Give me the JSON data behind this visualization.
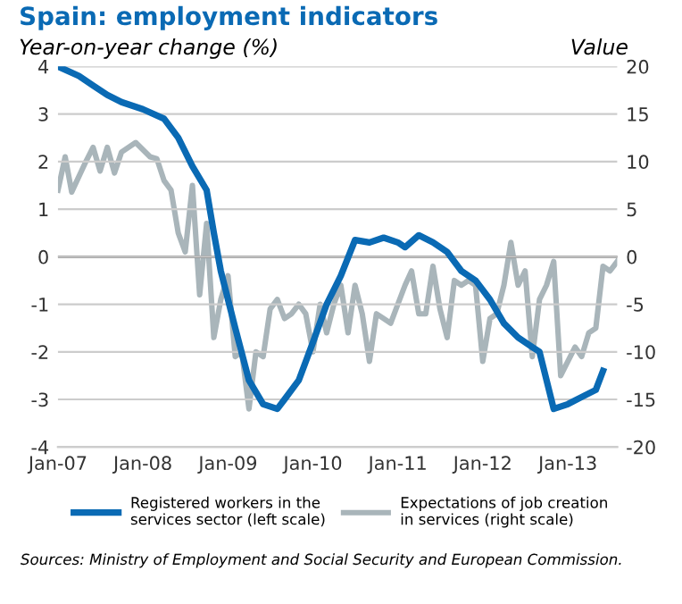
{
  "chart_data": {
    "type": "line",
    "title": "Spain: employment indicators",
    "ylabel": "Year-on-year change (%)",
    "y2label": "Value",
    "annotations": [
      "Sources: Ministry of Employment and Social Security and European Commission."
    ],
    "xlim": [
      "2007-01",
      "2013-08"
    ],
    "xticks": [
      {
        "value": "2007-01",
        "label": "Jan-07"
      },
      {
        "value": "2008-01",
        "label": "Jan-08"
      },
      {
        "value": "2009-01",
        "label": "Jan-09"
      },
      {
        "value": "2010-01",
        "label": "Jan-10"
      },
      {
        "value": "2011-01",
        "label": "Jan-11"
      },
      {
        "value": "2012-01",
        "label": "Jan-12"
      },
      {
        "value": "2013-01",
        "label": "Jan-13"
      }
    ],
    "ylim": [
      -4,
      4
    ],
    "yticks": [
      -4,
      -3,
      -2,
      -1,
      0,
      1,
      2,
      3,
      4
    ],
    "y2lim": [
      -20,
      20
    ],
    "y2ticks": [
      -20,
      -15,
      -10,
      -5,
      0,
      5,
      10,
      15,
      20
    ],
    "grid": "y",
    "legend": "bottom",
    "marker": "none",
    "line_style": "solid",
    "ref_lines": [
      {
        "axis": "y",
        "value": 0,
        "color": "#555555"
      }
    ],
    "series": [
      {
        "name": "Registered workers in the services sector (left scale)",
        "color": "#0a6ab4",
        "axis": "y",
        "x": [
          "2007-01",
          "2007-04",
          "2007-06",
          "2007-08",
          "2007-10",
          "2008-01",
          "2008-04",
          "2008-06",
          "2008-08",
          "2008-10",
          "2008-11",
          "2008-12",
          "2009-02",
          "2009-04",
          "2009-06",
          "2009-08",
          "2009-09",
          "2009-11",
          "2010-01",
          "2010-03",
          "2010-05",
          "2010-07",
          "2010-09",
          "2010-11",
          "2011-01",
          "2011-02",
          "2011-04",
          "2011-06",
          "2011-08",
          "2011-10",
          "2011-12",
          "2012-02",
          "2012-04",
          "2012-06",
          "2012-08",
          "2012-09",
          "2012-11",
          "2013-01",
          "2013-03",
          "2013-05",
          "2013-06"
        ],
        "values": [
          4.0,
          3.8,
          3.6,
          3.4,
          3.25,
          3.1,
          2.9,
          2.5,
          1.9,
          1.4,
          0.5,
          -0.3,
          -1.5,
          -2.6,
          -3.1,
          -3.2,
          -3.0,
          -2.6,
          -1.8,
          -1.0,
          -0.4,
          0.35,
          0.3,
          0.4,
          0.3,
          0.2,
          0.45,
          0.3,
          0.1,
          -0.3,
          -0.5,
          -0.9,
          -1.4,
          -1.7,
          -1.9,
          -2.0,
          -3.2,
          -3.1,
          -2.95,
          -2.8,
          -2.4
        ]
      },
      {
        "name": "Expectations of job creation in services (right scale)",
        "color": "#a9b5ba",
        "axis": "y2",
        "x": [
          "2007-01",
          "2007-02",
          "2007-03",
          "2007-05",
          "2007-06",
          "2007-07",
          "2007-08",
          "2007-09",
          "2007-10",
          "2007-12",
          "2008-02",
          "2008-03",
          "2008-04",
          "2008-05",
          "2008-06",
          "2008-07",
          "2008-08",
          "2008-09",
          "2008-10",
          "2008-11",
          "2008-12",
          "2009-01",
          "2009-02",
          "2009-03",
          "2009-04",
          "2009-05",
          "2009-06",
          "2009-07",
          "2009-08",
          "2009-09",
          "2009-10",
          "2009-11",
          "2009-12",
          "2010-01",
          "2010-02",
          "2010-03",
          "2010-04",
          "2010-05",
          "2010-06",
          "2010-07",
          "2010-08",
          "2010-09",
          "2010-10",
          "2010-11",
          "2010-12",
          "2011-01",
          "2011-02",
          "2011-03",
          "2011-04",
          "2011-05",
          "2011-06",
          "2011-07",
          "2011-08",
          "2011-09",
          "2011-10",
          "2011-11",
          "2011-12",
          "2012-01",
          "2012-02",
          "2012-03",
          "2012-04",
          "2012-05",
          "2012-06",
          "2012-07",
          "2012-08",
          "2012-09",
          "2012-10",
          "2012-11",
          "2012-12",
          "2013-01",
          "2013-02",
          "2013-03",
          "2013-04",
          "2013-05",
          "2013-06",
          "2013-07",
          "2013-08"
        ],
        "values": [
          7,
          10.5,
          6.8,
          10,
          11.5,
          9,
          11.5,
          8.8,
          11,
          12,
          10.5,
          10.3,
          8,
          7,
          2.5,
          0.5,
          7.5,
          -4,
          3.5,
          -8.5,
          -4.5,
          -2,
          -10.5,
          -10,
          -16,
          -10,
          -10.5,
          -5.5,
          -4.5,
          -6.5,
          -6,
          -5,
          -6,
          -10,
          -5,
          -8,
          -5,
          -3,
          -8,
          -3,
          -6,
          -11,
          -6,
          -6.5,
          -7,
          -5,
          -3,
          -1.5,
          -6,
          -6,
          -1,
          -5.5,
          -8.5,
          -2.5,
          -3,
          -2.5,
          -3,
          -11,
          -6.5,
          -6,
          -3,
          1.5,
          -3,
          -1.5,
          -10.5,
          -4.5,
          -3,
          -0.5,
          -12.5,
          -11,
          -9.5,
          -10.5,
          -8,
          -7.5,
          -1,
          -1.5,
          -0.5
        ]
      }
    ]
  }
}
